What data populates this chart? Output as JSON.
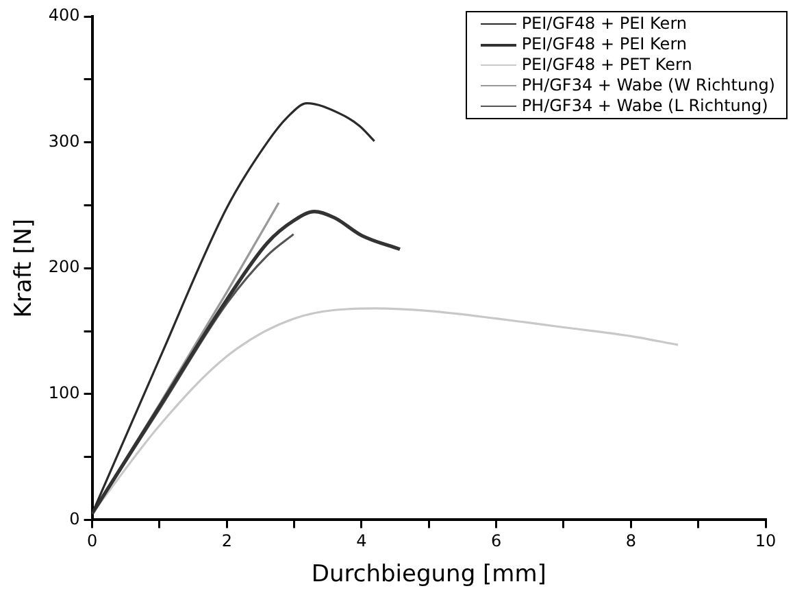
{
  "chart_data": {
    "type": "line",
    "xlabel": "Durchbiegung [mm]",
    "ylabel": "Kraft [N]",
    "xlim": [
      0,
      10
    ],
    "ylim": [
      0,
      400
    ],
    "xticks": [
      0,
      {
        "value": 1,
        "label": null
      },
      2,
      {
        "value": 3,
        "label": null
      },
      4,
      {
        "value": 5,
        "label": null
      },
      6,
      {
        "value": 7,
        "label": null
      },
      8,
      {
        "value": 9,
        "label": null
      },
      10
    ],
    "yticks": [
      0,
      {
        "value": 50,
        "label": null
      },
      100,
      {
        "value": 150,
        "label": null
      },
      200,
      {
        "value": 250,
        "label": null
      },
      300,
      {
        "value": 350,
        "label": null
      },
      400
    ],
    "grid": false,
    "legend": "top right",
    "marker": "none",
    "line_style": "solid",
    "series": [
      {
        "name": "PEI/GF48 + PEI Kern",
        "color": "#2a2a2a",
        "x": [
          0,
          1,
          2,
          2.6,
          2.9,
          3.19,
          3.67,
          3.97,
          4.19
        ],
        "values": [
          5,
          128,
          248,
          300,
          320,
          331,
          323,
          313,
          301
        ]
      },
      {
        "name": "PEI/GF48 + PEI Kern",
        "color": "#333333",
        "x": [
          0,
          1,
          2,
          2.6,
          3,
          3.3,
          3.6,
          4,
          4.57
        ],
        "values": [
          5,
          90,
          175,
          220,
          238,
          245,
          240,
          226,
          215
        ]
      },
      {
        "name": "PEI/GF48 + PET Kern",
        "color": "#c8c8c8",
        "x": [
          0,
          1,
          2,
          3,
          4.2,
          5,
          6,
          7,
          8,
          8.7
        ],
        "values": [
          5,
          75,
          130,
          160,
          168,
          166,
          160,
          153,
          146,
          139
        ]
      },
      {
        "name": "PH/GF34 + Wabe (W Richtung)",
        "color": "#999999",
        "x": [
          0,
          1,
          2,
          2.77
        ],
        "values": [
          5,
          92,
          181,
          252
        ]
      },
      {
        "name": "PH/GF34 + Wabe (L Richtung)",
        "color": "#555555",
        "x": [
          0,
          1,
          2,
          2.6,
          2.99
        ],
        "values": [
          5,
          88,
          172,
          210,
          227
        ]
      }
    ]
  }
}
